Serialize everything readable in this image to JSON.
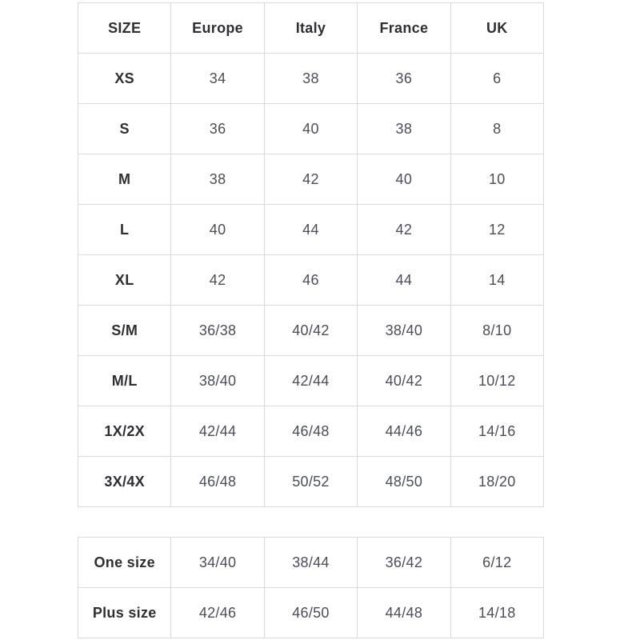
{
  "colors": {
    "background": "#ffffff",
    "border": "#dadada",
    "label_text": "#2d2f33",
    "value_text": "#4b4e57"
  },
  "size_table": {
    "headers": [
      "SIZE",
      "Europe",
      "Italy",
      "France",
      "UK"
    ],
    "rows": [
      {
        "label": "XS",
        "cells": [
          "34",
          "38",
          "36",
          "6"
        ]
      },
      {
        "label": "S",
        "cells": [
          "36",
          "40",
          "38",
          "8"
        ]
      },
      {
        "label": "M",
        "cells": [
          "38",
          "42",
          "40",
          "10"
        ]
      },
      {
        "label": "L",
        "cells": [
          "40",
          "44",
          "42",
          "12"
        ]
      },
      {
        "label": "XL",
        "cells": [
          "42",
          "46",
          "44",
          "14"
        ]
      },
      {
        "label": "S/M",
        "cells": [
          "36/38",
          "40/42",
          "38/40",
          "8/10"
        ]
      },
      {
        "label": "M/L",
        "cells": [
          "38/40",
          "42/44",
          "40/42",
          "10/12"
        ]
      },
      {
        "label": "1X/2X",
        "cells": [
          "42/44",
          "46/48",
          "44/46",
          "14/16"
        ]
      },
      {
        "label": "3X/4X",
        "cells": [
          "46/48",
          "50/52",
          "48/50",
          "18/20"
        ]
      }
    ]
  },
  "special_table": {
    "rows": [
      {
        "label": "One size",
        "cells": [
          "34/40",
          "38/44",
          "36/42",
          "6/12"
        ]
      },
      {
        "label": "Plus size",
        "cells": [
          "42/46",
          "46/50",
          "44/48",
          "14/18"
        ]
      }
    ]
  }
}
